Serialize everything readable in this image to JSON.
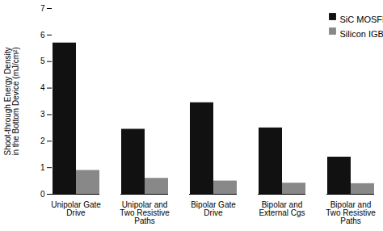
{
  "chart_data": {
    "type": "bar",
    "categories": [
      "Unipolar Gate\nDrive",
      "Unipolar and\nTwo Resistive\nPaths",
      "Bipolar Gate\nDrive",
      "Bipolar and\nExternal Cgs",
      "Bipolar and\nTwo Resistive\nPaths"
    ],
    "series": [
      {
        "name": "SiC MOSFET",
        "color": "#111111",
        "values": [
          5.7,
          2.45,
          3.45,
          2.5,
          1.4
        ]
      },
      {
        "name": "Silicon IGBT",
        "color": "#888888",
        "values": [
          0.9,
          0.6,
          0.5,
          0.42,
          0.4
        ]
      }
    ],
    "ylabel": "Shoot-through Energy Density\nin the Bottom Device (mJ/cm²)",
    "ylim": [
      0,
      7
    ],
    "yticks": [
      0,
      1,
      2,
      3,
      4,
      5,
      6,
      7
    ],
    "grid": false,
    "legend": "upper right"
  }
}
